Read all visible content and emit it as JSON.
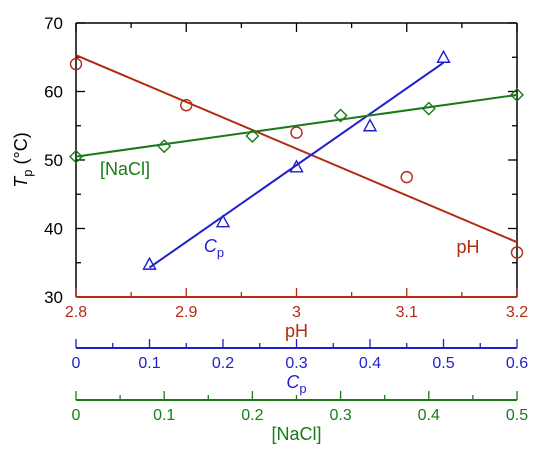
{
  "colors": {
    "frame": "#000000",
    "ph": "#b22b12",
    "cp": "#1f1fcc",
    "nacl": "#1a7a1a"
  },
  "chart_data": {
    "type": "scatter",
    "ylabel_main": "T",
    "ylabel_sub": "p",
    "ylabel_unit": "(°C)",
    "ylim": [
      30,
      70
    ],
    "yticks": [
      30,
      40,
      50,
      60,
      70
    ],
    "grid": false,
    "axes": [
      {
        "id": "ph",
        "label": "pH",
        "label_sub": "",
        "range": [
          2.8,
          3.2
        ],
        "ticks": [
          "2.8",
          "2.9",
          "3",
          "3.1",
          "3.2"
        ],
        "color_key": "ph"
      },
      {
        "id": "cp",
        "label": "C",
        "label_sub": "p",
        "range": [
          0,
          0.6
        ],
        "ticks": [
          "0",
          "0.1",
          "0.2",
          "0.3",
          "0.4",
          "0.5",
          "0.6"
        ],
        "color_key": "cp"
      },
      {
        "id": "nacl",
        "label": "[NaCl]",
        "label_sub": "",
        "range": [
          0,
          0.5
        ],
        "ticks": [
          "0",
          "0.1",
          "0.2",
          "0.3",
          "0.4",
          "0.5"
        ],
        "color_key": "nacl"
      }
    ],
    "series": [
      {
        "axis": "ph",
        "label_main": "pH",
        "label_sub": "",
        "marker": "circle",
        "x": [
          2.8,
          2.9,
          3.0,
          3.1,
          3.2
        ],
        "y": [
          64.0,
          58.0,
          54.0,
          47.5,
          36.5
        ],
        "fit": {
          "x": [
            2.8,
            3.2
          ],
          "y": [
            65.3,
            38.0
          ]
        }
      },
      {
        "axis": "cp",
        "label_main": "C",
        "label_sub": "p",
        "marker": "triangle",
        "x": [
          0.1,
          0.2,
          0.3,
          0.4,
          0.5
        ],
        "y": [
          34.8,
          41.0,
          49.0,
          55.0,
          65.0
        ],
        "fit": {
          "x": [
            0.1,
            0.5
          ],
          "y": [
            34.3,
            64.2
          ]
        }
      },
      {
        "axis": "nacl",
        "label_main": "[NaCl]",
        "label_sub": "",
        "marker": "diamond",
        "x": [
          0,
          0.1,
          0.2,
          0.3,
          0.4,
          0.5
        ],
        "y": [
          50.5,
          52.0,
          53.5,
          56.5,
          57.5,
          59.5
        ],
        "fit": {
          "x": [
            0,
            0.5
          ],
          "y": [
            50.5,
            59.5
          ]
        }
      }
    ]
  }
}
